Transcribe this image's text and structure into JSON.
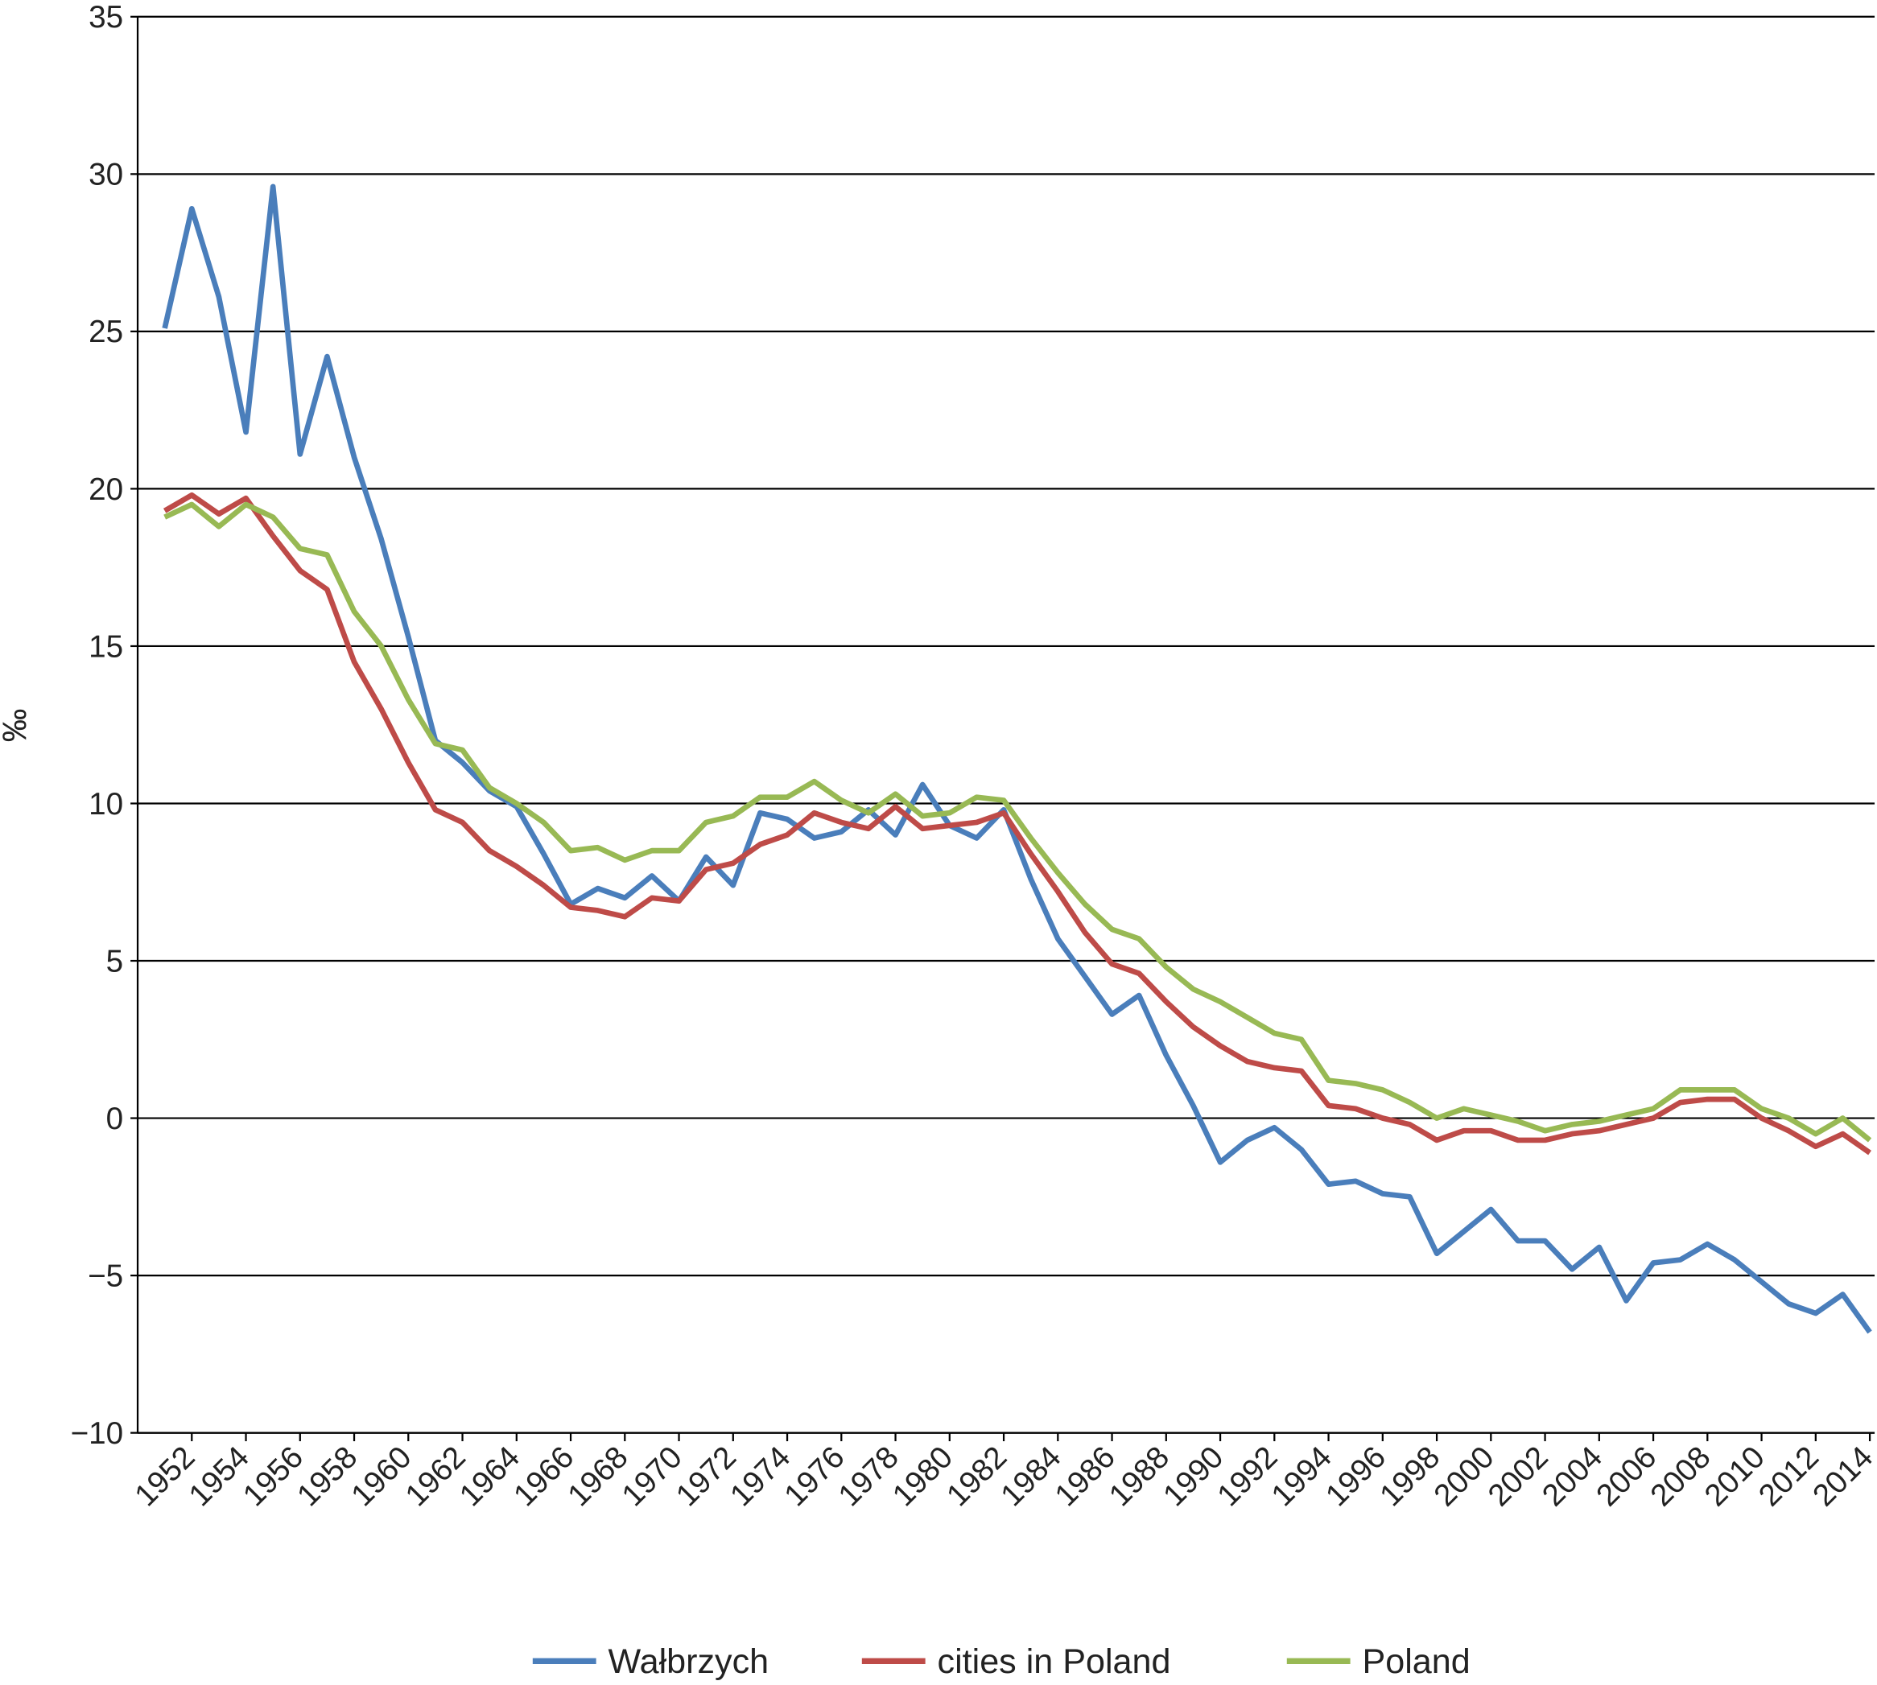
{
  "chart_data": {
    "type": "line",
    "y_label": "‰",
    "x": [
      1951,
      1952,
      1953,
      1954,
      1955,
      1956,
      1957,
      1958,
      1959,
      1960,
      1961,
      1962,
      1963,
      1964,
      1965,
      1966,
      1967,
      1968,
      1969,
      1970,
      1971,
      1972,
      1973,
      1974,
      1975,
      1976,
      1977,
      1978,
      1979,
      1980,
      1981,
      1982,
      1983,
      1984,
      1985,
      1986,
      1987,
      1988,
      1989,
      1990,
      1991,
      1992,
      1993,
      1994,
      1995,
      1996,
      1997,
      1998,
      1999,
      2000,
      2001,
      2002,
      2003,
      2004,
      2005,
      2006,
      2007,
      2008,
      2009,
      2010,
      2011,
      2012,
      2013,
      2014
    ],
    "xlim": [
      1950,
      2014
    ],
    "xticks": [
      1952,
      1954,
      1956,
      1958,
      1960,
      1962,
      1964,
      1966,
      1968,
      1970,
      1972,
      1974,
      1976,
      1978,
      1980,
      1982,
      1984,
      1986,
      1988,
      1990,
      1992,
      1994,
      1996,
      1998,
      2000,
      2002,
      2004,
      2006,
      2008,
      2010,
      2012,
      2014
    ],
    "ylim": [
      -10,
      35
    ],
    "yticks": [
      {
        "value": -10,
        "label": "−10"
      },
      {
        "value": -5,
        "label": "−5"
      },
      0,
      5,
      10,
      15,
      20,
      25,
      30,
      35
    ],
    "grid": true,
    "legend": "bottom",
    "series": [
      {
        "name": "Wałbrzych",
        "color": "#4a7ebb",
        "values": [
          25.1,
          28.9,
          26.1,
          21.8,
          29.6,
          21.1,
          24.2,
          21.0,
          18.4,
          15.3,
          12.0,
          11.3,
          10.4,
          9.9,
          8.4,
          6.8,
          7.3,
          7.0,
          7.7,
          6.9,
          8.3,
          7.4,
          9.7,
          9.5,
          8.9,
          9.1,
          9.8,
          9.0,
          10.6,
          9.3,
          8.9,
          9.8,
          7.6,
          5.7,
          4.5,
          3.3,
          3.9,
          2.0,
          0.4,
          -1.4,
          -0.7,
          -0.3,
          -1.0,
          -2.1,
          -2.0,
          -2.4,
          -2.5,
          -4.3,
          -3.6,
          -2.9,
          -3.9,
          -3.9,
          -4.8,
          -4.1,
          -5.8,
          -4.6,
          -4.5,
          -4.0,
          -4.5,
          -5.2,
          -5.9,
          -6.2,
          -5.6,
          -6.8
        ]
      },
      {
        "name": "cities in Poland",
        "color": "#be4b48",
        "values": [
          19.3,
          19.8,
          19.2,
          19.7,
          18.5,
          17.4,
          16.8,
          14.5,
          13.0,
          11.3,
          9.8,
          9.4,
          8.5,
          8.0,
          7.4,
          6.7,
          6.6,
          6.4,
          7.0,
          6.9,
          7.9,
          8.1,
          8.7,
          9.0,
          9.7,
          9.4,
          9.2,
          9.9,
          9.2,
          9.3,
          9.4,
          9.7,
          8.4,
          7.2,
          5.9,
          4.9,
          4.6,
          3.7,
          2.9,
          2.3,
          1.8,
          1.6,
          1.5,
          0.4,
          0.3,
          0.0,
          -0.2,
          -0.7,
          -0.4,
          -0.4,
          -0.7,
          -0.7,
          -0.5,
          -0.4,
          -0.2,
          0.0,
          0.5,
          0.6,
          0.6,
          0.0,
          -0.4,
          -0.9,
          -0.5,
          -1.1
        ]
      },
      {
        "name": "Poland",
        "color": "#98b954",
        "values": [
          19.1,
          19.5,
          18.8,
          19.5,
          19.1,
          18.1,
          17.9,
          16.1,
          15.0,
          13.3,
          11.9,
          11.7,
          10.5,
          10.0,
          9.4,
          8.5,
          8.6,
          8.2,
          8.5,
          8.5,
          9.4,
          9.6,
          10.2,
          10.2,
          10.7,
          10.1,
          9.7,
          10.3,
          9.6,
          9.7,
          10.2,
          10.1,
          8.9,
          7.8,
          6.8,
          6.0,
          5.7,
          4.8,
          4.1,
          3.7,
          3.2,
          2.7,
          2.5,
          1.2,
          1.1,
          0.9,
          0.5,
          0.0,
          0.3,
          0.1,
          -0.1,
          -0.4,
          -0.2,
          -0.1,
          0.1,
          0.3,
          0.9,
          0.9,
          0.9,
          0.3,
          0.0,
          -0.5,
          0.0,
          -0.7
        ]
      }
    ]
  }
}
